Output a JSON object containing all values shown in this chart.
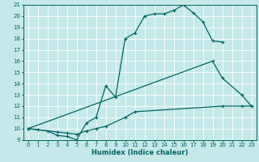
{
  "xlabel": "Humidex (Indice chaleur)",
  "bg_color": "#c5e8e8",
  "grid_color": "#ffffff",
  "line_color": "#006666",
  "line1_x": [
    0,
    1,
    2,
    3,
    4,
    5,
    6,
    7,
    8,
    9,
    10,
    11,
    12,
    13,
    14,
    15,
    16,
    17,
    18,
    19,
    20
  ],
  "line1_y": [
    10,
    9.9,
    9.8,
    9.4,
    9.3,
    9.0,
    10.5,
    11.0,
    13.8,
    12.8,
    18.0,
    18.5,
    20.0,
    20.2,
    20.2,
    20.5,
    21.0,
    20.3,
    19.5,
    17.8,
    17.7
  ],
  "line2_x": [
    0,
    19,
    20,
    22,
    23
  ],
  "line2_y": [
    10.0,
    16.0,
    14.5,
    13.0,
    12.0
  ],
  "line3_x": [
    0,
    3,
    4,
    5,
    6,
    7,
    8,
    10,
    11,
    20,
    22,
    23
  ],
  "line3_y": [
    10.0,
    9.7,
    9.6,
    9.5,
    9.8,
    10.0,
    10.2,
    11.0,
    11.5,
    12.0,
    12.0,
    12.0
  ],
  "xlim": [
    -0.5,
    23.5
  ],
  "ylim": [
    9,
    21
  ],
  "yticks": [
    9,
    10,
    11,
    12,
    13,
    14,
    15,
    16,
    17,
    18,
    19,
    20,
    21
  ],
  "xticks": [
    0,
    1,
    2,
    3,
    4,
    5,
    6,
    7,
    8,
    9,
    10,
    11,
    12,
    13,
    14,
    15,
    16,
    17,
    18,
    19,
    20,
    21,
    22,
    23
  ],
  "tick_fontsize": 5,
  "xlabel_fontsize": 6,
  "linewidth": 0.9,
  "markersize": 3.5
}
